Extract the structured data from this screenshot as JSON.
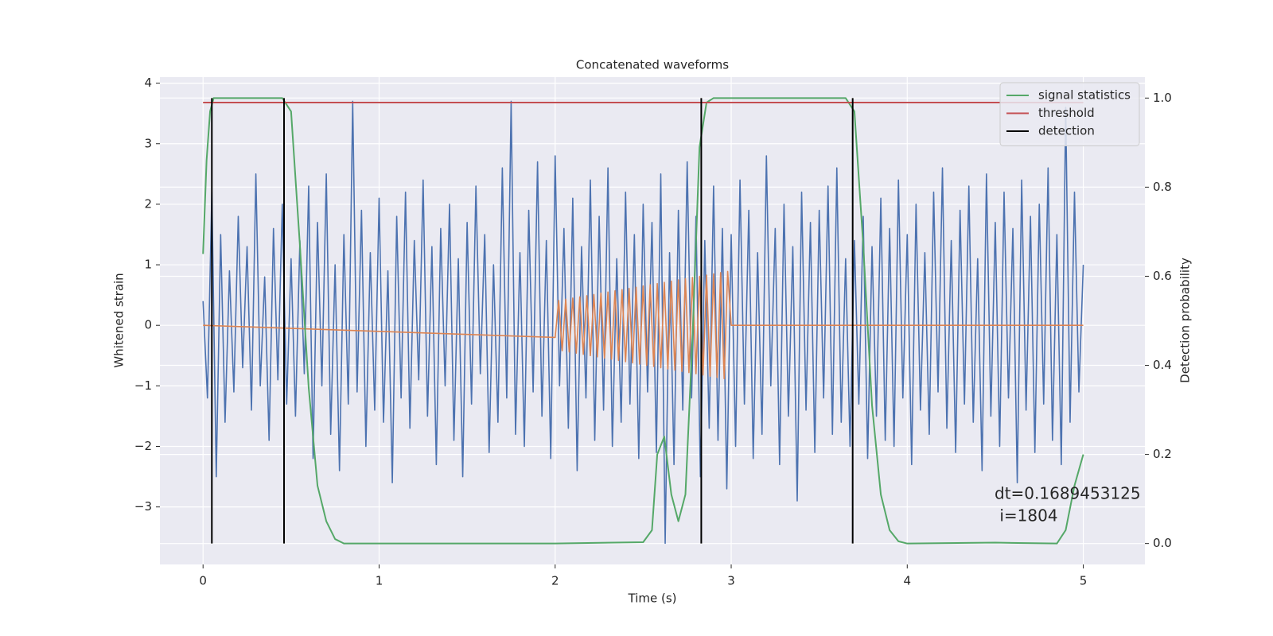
{
  "chart_data": {
    "type": "line",
    "title": "Concatenated waveforms",
    "xlabel": "Time (s)",
    "ylabel": "Whitened strain",
    "y2label": "Detection probability",
    "xlim": [
      -0.245,
      5.35
    ],
    "ylim": [
      -3.95,
      4.1
    ],
    "y2lim": [
      -0.047,
      1.047
    ],
    "xticks": [
      0,
      1,
      2,
      3,
      4,
      5
    ],
    "yticks": [
      {
        "value": -3,
        "label": "−3"
      },
      {
        "value": -2,
        "label": "−2"
      },
      {
        "value": -1,
        "label": "−1"
      },
      0,
      1,
      2,
      3,
      4
    ],
    "y2ticks": [
      {
        "value": 0,
        "label": "0.0"
      },
      {
        "value": 0.2,
        "label": "0.2"
      },
      {
        "value": 0.4,
        "label": "0.4"
      },
      {
        "value": 0.6,
        "label": "0.6"
      },
      {
        "value": 0.8,
        "label": "0.8"
      },
      {
        "value": 1,
        "label": "1.0"
      }
    ],
    "grid": true,
    "background": "#eaeaf2",
    "legend": "upper right",
    "series": [
      {
        "color": "#4c72b0",
        "axis": "y",
        "x": [
          0,
          0.025,
          0.05,
          0.075,
          0.1,
          0.125,
          0.15,
          0.175,
          0.2,
          0.225,
          0.25,
          0.275,
          0.3,
          0.325,
          0.35,
          0.375,
          0.4,
          0.425,
          0.45,
          0.475,
          0.5,
          0.525,
          0.55,
          0.575,
          0.6,
          0.625,
          0.65,
          0.675,
          0.7,
          0.725,
          0.75,
          0.775,
          0.8,
          0.825,
          0.85,
          0.875,
          0.9,
          0.925,
          0.95,
          0.975,
          1,
          1.025,
          1.05,
          1.075,
          1.1,
          1.125,
          1.15,
          1.175,
          1.2,
          1.225,
          1.25,
          1.275,
          1.3,
          1.325,
          1.35,
          1.375,
          1.4,
          1.425,
          1.45,
          1.475,
          1.5,
          1.525,
          1.55,
          1.575,
          1.6,
          1.625,
          1.65,
          1.675,
          1.7,
          1.725,
          1.75,
          1.775,
          1.8,
          1.825,
          1.85,
          1.875,
          1.9,
          1.925,
          1.95,
          1.975,
          2,
          2.025,
          2.05,
          2.075,
          2.1,
          2.125,
          2.15,
          2.175,
          2.2,
          2.225,
          2.25,
          2.275,
          2.3,
          2.325,
          2.35,
          2.375,
          2.4,
          2.425,
          2.45,
          2.475,
          2.5,
          2.525,
          2.55,
          2.575,
          2.6,
          2.625,
          2.65,
          2.675,
          2.7,
          2.725,
          2.75,
          2.775,
          2.8,
          2.825,
          2.85,
          2.875,
          2.9,
          2.925,
          2.95,
          2.975,
          3,
          3.025,
          3.05,
          3.075,
          3.1,
          3.125,
          3.15,
          3.175,
          3.2,
          3.225,
          3.25,
          3.275,
          3.3,
          3.325,
          3.35,
          3.375,
          3.4,
          3.425,
          3.45,
          3.475,
          3.5,
          3.525,
          3.55,
          3.575,
          3.6,
          3.625,
          3.65,
          3.675,
          3.7,
          3.725,
          3.75,
          3.775,
          3.8,
          3.825,
          3.85,
          3.875,
          3.9,
          3.925,
          3.95,
          3.975,
          4,
          4.025,
          4.05,
          4.075,
          4.1,
          4.125,
          4.15,
          4.175,
          4.2,
          4.225,
          4.25,
          4.275,
          4.3,
          4.325,
          4.35,
          4.375,
          4.4,
          4.425,
          4.45,
          4.475,
          4.5,
          4.525,
          4.55,
          4.575,
          4.6,
          4.625,
          4.65,
          4.675,
          4.7,
          4.725,
          4.75,
          4.775,
          4.8,
          4.825,
          4.85,
          4.875,
          4.9,
          4.925,
          4.95,
          4.975,
          5
        ],
        "values": [
          0.4,
          -1.2,
          2.2,
          -2.5,
          1.5,
          -1.6,
          0.9,
          -1.1,
          1.8,
          -0.7,
          1.3,
          -1.4,
          2.5,
          -1.0,
          0.8,
          -1.9,
          1.6,
          -0.9,
          2.0,
          -1.3,
          1.1,
          -1.5,
          1.4,
          -0.8,
          2.3,
          -2.2,
          1.7,
          -1.0,
          2.5,
          -1.8,
          1.0,
          -2.4,
          1.5,
          -1.3,
          3.7,
          -1.1,
          1.9,
          -2.0,
          1.2,
          -1.4,
          2.1,
          -1.6,
          0.9,
          -2.6,
          1.8,
          -1.2,
          2.2,
          -1.7,
          1.4,
          -0.9,
          2.4,
          -1.5,
          1.3,
          -2.3,
          1.6,
          -1.0,
          2.0,
          -1.9,
          1.1,
          -2.5,
          1.7,
          -1.3,
          2.3,
          -0.8,
          1.5,
          -2.1,
          1.0,
          -1.6,
          2.6,
          -1.2,
          3.7,
          -1.8,
          1.2,
          -2.0,
          1.9,
          -1.1,
          2.7,
          -1.5,
          1.4,
          -2.2,
          2.8,
          -1.0,
          1.6,
          -1.7,
          2.1,
          -2.4,
          1.3,
          -1.2,
          2.4,
          -1.9,
          1.8,
          -1.4,
          2.6,
          -2.0,
          1.1,
          -1.6,
          2.2,
          -1.3,
          1.5,
          -2.2,
          2.0,
          -1.1,
          1.7,
          -2.1,
          2.5,
          -3.6,
          1.2,
          -2.3,
          1.9,
          -1.4,
          2.7,
          -1.2,
          1.8,
          -2.5,
          1.4,
          -1.7,
          2.3,
          -1.9,
          1.6,
          -2.7,
          1.5,
          -2.0,
          2.4,
          -1.3,
          1.9,
          -2.2,
          1.2,
          -1.8,
          2.8,
          -1.0,
          1.6,
          -2.3,
          2.0,
          -1.5,
          1.3,
          -2.9,
          2.2,
          -1.4,
          1.7,
          -2.1,
          1.9,
          -1.2,
          2.3,
          -1.8,
          2.6,
          -1.6,
          1.1,
          -2.0,
          1.4,
          -1.3,
          1.8,
          -2.2,
          1.3,
          -1.5,
          2.1,
          -1.9,
          1.6,
          -2.0,
          2.4,
          -1.2,
          1.5,
          -2.3,
          2.0,
          -1.4,
          1.2,
          -1.8,
          2.2,
          -1.1,
          2.6,
          -1.7,
          1.4,
          -2.1,
          1.9,
          -1.3,
          2.3,
          -1.6,
          1.1,
          -2.4,
          2.5,
          -1.5,
          1.7,
          -2.0,
          2.2,
          -1.2,
          1.6,
          -2.6,
          2.4,
          -1.4,
          1.8,
          -2.1,
          2.0,
          -1.3,
          2.6,
          -1.9,
          1.5,
          -2.3,
          3.6,
          -1.6,
          2.2,
          -1.1,
          1.0
        ]
      },
      {
        "color": "#dd8452",
        "axis": "y",
        "x": [
          0,
          2,
          2.02,
          2.04,
          2.06,
          2.08,
          2.1,
          2.12,
          2.14,
          2.16,
          2.18,
          2.2,
          2.22,
          2.24,
          2.26,
          2.28,
          2.3,
          2.32,
          2.34,
          2.36,
          2.38,
          2.4,
          2.42,
          2.44,
          2.46,
          2.48,
          2.5,
          2.52,
          2.54,
          2.56,
          2.58,
          2.6,
          2.62,
          2.64,
          2.66,
          2.68,
          2.7,
          2.72,
          2.74,
          2.76,
          2.78,
          2.8,
          2.82,
          2.84,
          2.86,
          2.88,
          2.9,
          2.92,
          2.94,
          2.96,
          2.98,
          3,
          5
        ],
        "values": [
          0,
          -0.2,
          0.41,
          -0.42,
          0.43,
          -0.44,
          0.45,
          -0.46,
          0.47,
          -0.48,
          0.49,
          -0.5,
          0.51,
          -0.52,
          0.53,
          -0.54,
          0.55,
          -0.56,
          0.57,
          -0.58,
          0.59,
          -0.6,
          0.61,
          -0.62,
          0.63,
          -0.64,
          0.65,
          -0.66,
          0.67,
          -0.68,
          0.69,
          -0.7,
          0.71,
          -0.72,
          0.73,
          -0.74,
          0.75,
          -0.76,
          0.77,
          -0.78,
          0.79,
          -0.8,
          0.81,
          -0.82,
          0.83,
          -0.84,
          0.85,
          -0.86,
          0.87,
          -0.88,
          0.89,
          0,
          0
        ]
      },
      {
        "name": "signal statistics",
        "color": "#55a868",
        "axis": "y2",
        "x": [
          0,
          0.02,
          0.04,
          0.06,
          0.1,
          0.45,
          0.5,
          0.55,
          0.6,
          0.65,
          0.7,
          0.75,
          0.8,
          1,
          2,
          2.5,
          2.55,
          2.58,
          2.62,
          2.66,
          2.7,
          2.74,
          2.78,
          2.82,
          2.86,
          2.9,
          3.65,
          3.7,
          3.75,
          3.8,
          3.85,
          3.9,
          3.95,
          4,
          4.5,
          4.85,
          4.9,
          4.95,
          5
        ],
        "values": [
          0.65,
          0.86,
          0.97,
          1,
          1,
          1,
          0.97,
          0.67,
          0.35,
          0.13,
          0.05,
          0.01,
          0,
          0,
          0,
          0.003,
          0.03,
          0.2,
          0.24,
          0.11,
          0.05,
          0.11,
          0.46,
          0.89,
          0.99,
          1,
          1,
          0.97,
          0.67,
          0.31,
          0.11,
          0.03,
          0.005,
          0,
          0.002,
          0,
          0.03,
          0.13,
          0.2
        ]
      },
      {
        "name": "threshold",
        "color": "#c44e52",
        "axis": "y2",
        "x": [
          0,
          5
        ],
        "values": [
          0.99,
          0.99
        ]
      }
    ],
    "detections": {
      "name": "detection",
      "color": "#000000",
      "x": [
        0.05,
        0.46,
        2.83,
        3.69
      ],
      "span": [
        0,
        1
      ]
    },
    "annotation": [
      "dt=0.1689453125",
      " i=1804"
    ]
  }
}
